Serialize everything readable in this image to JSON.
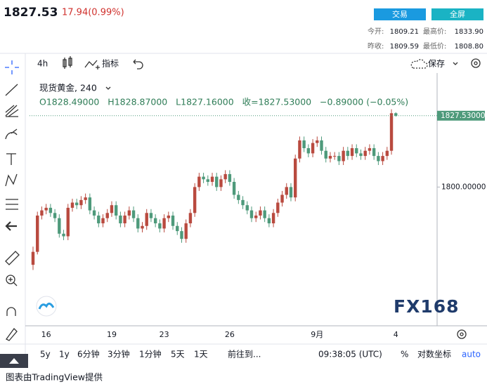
{
  "header": {
    "price": "1827.53",
    "change": "17.94(0.99%)",
    "trade_button": "交易",
    "fullscreen_button": "全屏",
    "open_label": "今开:",
    "open": "1809.21",
    "high_label": "最高价:",
    "high": "1833.90",
    "prev_close_label": "昨收:",
    "prev_close": "1809.59",
    "low_label": "最低价:",
    "low": "1808.80"
  },
  "toolbar": {
    "interval": "4h",
    "indicators": "指标",
    "save": "保存"
  },
  "chart_data": {
    "type": "candlestick",
    "legend": {
      "symbol": "现货黄金, 240",
      "ohlc": "O1828.49000   H1828.87000   L1827.16000   收=1827.53000   −0.89000 (−0.05%)"
    },
    "categories": [
      null,
      null,
      null,
      "16",
      null,
      null,
      null,
      null,
      null,
      null,
      null,
      null,
      null,
      null,
      null,
      null,
      null,
      null,
      "19",
      null,
      null,
      null,
      null,
      null,
      null,
      null,
      null,
      null,
      null,
      null,
      "23",
      null,
      null,
      null,
      null,
      null,
      null,
      null,
      null,
      null,
      null,
      null,
      null,
      null,
      null,
      "26",
      null,
      null,
      null,
      null,
      null,
      null,
      null,
      null,
      null,
      null,
      null,
      null,
      null,
      null,
      null,
      null,
      null,
      null,
      null,
      "9月",
      null,
      null,
      null,
      null,
      null,
      null,
      null,
      null,
      null,
      null,
      null,
      null,
      null,
      null,
      null,
      null,
      null,
      "4"
    ],
    "open": [
      1770,
      1775,
      1789,
      1791,
      1792,
      1790,
      1788,
      1782,
      1781,
      1792,
      1794,
      1793,
      1795,
      1796,
      1791,
      1789,
      1786,
      1788,
      1790,
      1793,
      1789,
      1786,
      1789,
      1791,
      1788,
      1784,
      1785,
      1790,
      1788,
      1786,
      1784,
      1788,
      1789,
      1785,
      1783,
      1780,
      1786,
      1790,
      1800,
      1804,
      1803,
      1802,
      1804,
      1800,
      1803,
      1805,
      1802,
      1797,
      1795,
      1793,
      1791,
      1788,
      1789,
      1791,
      1788,
      1786,
      1790,
      1794,
      1797,
      1800,
      1796,
      1811,
      1818,
      1815,
      1813,
      1817,
      1818,
      1814,
      1811,
      1812,
      1812,
      1810,
      1814,
      1812,
      1815,
      1813,
      1812,
      1814,
      1815,
      1812,
      1810,
      1812,
      1814,
      1828.49
    ],
    "high": [
      1777,
      1790.5,
      1792.5,
      1793.5,
      1793.5,
      1791.5,
      1789.5,
      1783.5,
      1793.5,
      1795.5,
      1795.5,
      1796.5,
      1797.5,
      1797.5,
      1792.5,
      1790.5,
      1789.5,
      1791.5,
      1794.5,
      1794.5,
      1790.5,
      1790.5,
      1792.5,
      1792.5,
      1789.5,
      1786.5,
      1791.5,
      1791.5,
      1789.5,
      1787.5,
      1789.5,
      1790.5,
      1790.5,
      1786.5,
      1784.5,
      1787.5,
      1791.5,
      1801.5,
      1805.5,
      1805.5,
      1804.5,
      1805.5,
      1805.5,
      1804.5,
      1806.5,
      1806.5,
      1803.5,
      1798.5,
      1796.5,
      1794.5,
      1792.5,
      1790.5,
      1792.5,
      1792.5,
      1789.5,
      1791.5,
      1795.5,
      1798.5,
      1801.5,
      1801.5,
      1812.5,
      1819.5,
      1819.5,
      1816.5,
      1818.5,
      1819.5,
      1819.5,
      1815.5,
      1813.5,
      1813.5,
      1813.5,
      1815.5,
      1815.5,
      1816.5,
      1816.5,
      1814.5,
      1815.5,
      1816.5,
      1816.5,
      1813.5,
      1813.5,
      1815.5,
      1830,
      1828.87
    ],
    "low": [
      1768,
      1774,
      1787.5,
      1789.5,
      1788.5,
      1786.5,
      1780.5,
      1779.5,
      1779.5,
      1790.5,
      1791.5,
      1791.5,
      1793.5,
      1789.5,
      1787.5,
      1784.5,
      1784.5,
      1786.5,
      1788.5,
      1787.5,
      1784.5,
      1784.5,
      1787.5,
      1786.5,
      1782.5,
      1782.5,
      1783.5,
      1786.5,
      1784.5,
      1782.5,
      1782.5,
      1786.5,
      1783.5,
      1781.5,
      1778.5,
      1778.5,
      1784.5,
      1788.5,
      1798.5,
      1801.5,
      1800.5,
      1800.5,
      1798.5,
      1798.5,
      1801.5,
      1800.5,
      1795.5,
      1793.5,
      1791.5,
      1789.5,
      1786.5,
      1786.5,
      1787.5,
      1786.5,
      1784.5,
      1784.5,
      1788.5,
      1792.5,
      1795.5,
      1794.5,
      1794.5,
      1809.5,
      1813.5,
      1811.5,
      1811.5,
      1815.5,
      1812.5,
      1809.5,
      1809.5,
      1810.5,
      1808.5,
      1808.5,
      1810.5,
      1810.5,
      1811.5,
      1810.5,
      1810.5,
      1812.5,
      1810.5,
      1808.5,
      1808.5,
      1810.5,
      1812.5,
      1827.16
    ],
    "close": [
      1775,
      1789,
      1791,
      1792,
      1790,
      1788,
      1782,
      1781,
      1792,
      1794,
      1793,
      1795,
      1796,
      1791,
      1789,
      1786,
      1788,
      1790,
      1793,
      1789,
      1786,
      1789,
      1791,
      1788,
      1784,
      1785,
      1790,
      1788,
      1786,
      1784,
      1788,
      1789,
      1785,
      1783,
      1780,
      1786,
      1790,
      1800,
      1804,
      1803,
      1802,
      1804,
      1800,
      1803,
      1805,
      1802,
      1797,
      1795,
      1793,
      1791,
      1788,
      1789,
      1791,
      1788,
      1786,
      1790,
      1794,
      1797,
      1800,
      1796,
      1811,
      1818,
      1815,
      1813,
      1817,
      1818,
      1814,
      1811,
      1812,
      1812,
      1810,
      1814,
      1812,
      1815,
      1813,
      1812,
      1814,
      1815,
      1812,
      1810,
      1812,
      1814,
      1828.49,
      1827.53
    ],
    "up_color": "#b94a3f",
    "down_color": "#4e9a7b",
    "ylim": [
      1747,
      1844
    ],
    "yticks": [
      {
        "value": 1800,
        "label": "1800.00000"
      }
    ],
    "price_tag": {
      "value": 1827.53,
      "label": "1827.53000"
    },
    "grid": false
  },
  "bottom_bar": {
    "ranges": [
      "5y",
      "1y",
      "6分钟",
      "3分钟",
      "1分钟",
      "5天",
      "1天"
    ],
    "goto": "前往到...",
    "time": "09:38:05 (UTC)",
    "percent": "%",
    "log": "对数坐标",
    "auto": "auto"
  },
  "watermark": "FX168",
  "footer": "图表由TradingView提供"
}
